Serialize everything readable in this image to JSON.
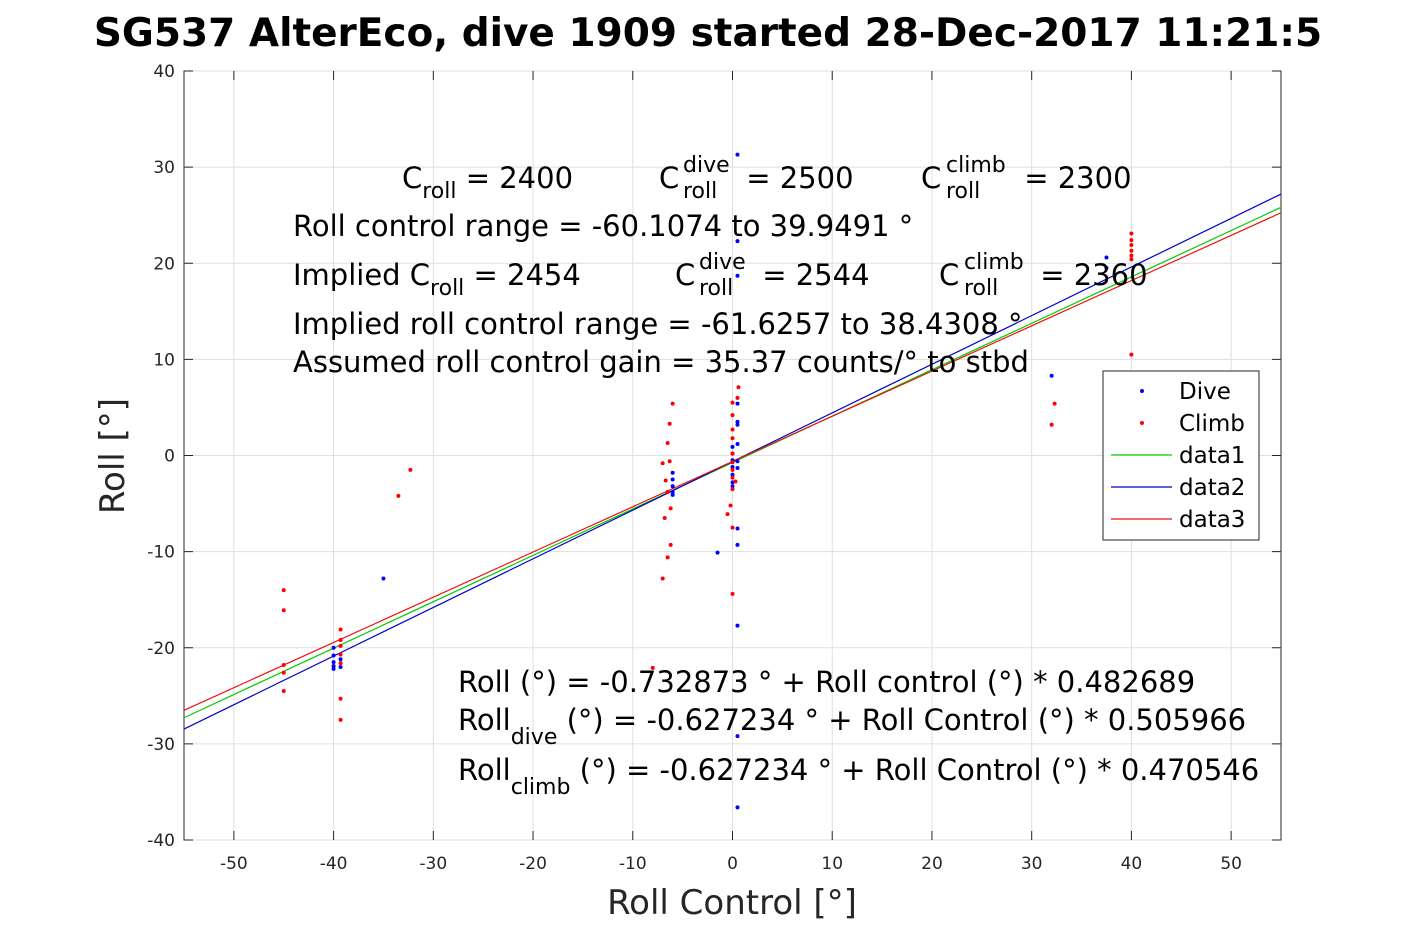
{
  "chart_data": {
    "type": "scatter",
    "title": "SG537 AlterEco, dive 1909 started 28-Dec-2017 11:21:5",
    "xlabel": "Roll Control [°]",
    "ylabel": "Roll [°]",
    "xlim": [
      -55,
      55
    ],
    "ylim": [
      -40,
      40
    ],
    "xticks": [
      -50,
      -40,
      -30,
      -20,
      -10,
      0,
      10,
      20,
      30,
      40,
      50
    ],
    "yticks": [
      -40,
      -30,
      -20,
      -10,
      0,
      10,
      20,
      30,
      40
    ],
    "grid": true,
    "legend_position": "right",
    "series": [
      {
        "name": "Dive",
        "kind": "points",
        "color": "#0000ff",
        "points": [
          [
            -40,
            -20
          ],
          [
            -40,
            -20.8
          ],
          [
            -40,
            -21.5
          ],
          [
            -40,
            -21.9
          ],
          [
            -40,
            -22.2
          ],
          [
            -39.3,
            -21.2
          ],
          [
            -39.3,
            -22
          ],
          [
            -35,
            -12.8
          ],
          [
            -1.5,
            -10.1
          ],
          [
            -6,
            -1.8
          ],
          [
            -6,
            -2.5
          ],
          [
            -6,
            -3.2
          ],
          [
            -6,
            -3.8
          ],
          [
            -6,
            -4.1
          ],
          [
            0,
            0.9
          ],
          [
            0,
            0.2
          ],
          [
            0,
            -0.5
          ],
          [
            0,
            -1.2
          ],
          [
            0,
            -2
          ],
          [
            0,
            -2.8
          ],
          [
            0,
            -3.2
          ],
          [
            0.5,
            31.3
          ],
          [
            0.5,
            22.3
          ],
          [
            0.5,
            18.7
          ],
          [
            0.5,
            5.4
          ],
          [
            0.5,
            3.5
          ],
          [
            0.5,
            3.2
          ],
          [
            0.5,
            1.2
          ],
          [
            0.5,
            -0.6
          ],
          [
            0.5,
            -1.3
          ],
          [
            0.5,
            -7.6
          ],
          [
            0.5,
            -9.3
          ],
          [
            0.5,
            -17.7
          ],
          [
            0.5,
            -29.2
          ],
          [
            0.5,
            -36.6
          ],
          [
            37.5,
            20.6
          ],
          [
            37.5,
            19.5
          ],
          [
            32,
            8.3
          ]
        ]
      },
      {
        "name": "Climb",
        "kind": "points",
        "color": "#ff0000",
        "points": [
          [
            -45,
            -14
          ],
          [
            -45,
            -16.1
          ],
          [
            -45,
            -21.8
          ],
          [
            -45,
            -22.6
          ],
          [
            -45,
            -24.5
          ],
          [
            -39.3,
            -18.1
          ],
          [
            -39.3,
            -19.2
          ],
          [
            -39.3,
            -19.8
          ],
          [
            -39.3,
            -20.7
          ],
          [
            -39.3,
            -21.6
          ],
          [
            -39.3,
            -25.3
          ],
          [
            -39.3,
            -27.5
          ],
          [
            -33.5,
            -4.2
          ],
          [
            -32.3,
            -1.5
          ],
          [
            -8,
            -22.1
          ],
          [
            -7,
            -12.8
          ],
          [
            -6.5,
            -10.6
          ],
          [
            -6.2,
            -9.3
          ],
          [
            -6.8,
            -6.5
          ],
          [
            -6.2,
            -5.5
          ],
          [
            -6.5,
            -3.8
          ],
          [
            -6.7,
            -2.6
          ],
          [
            -6.3,
            -0.6
          ],
          [
            -6.5,
            1.3
          ],
          [
            -6.3,
            3.3
          ],
          [
            -6,
            5.4
          ],
          [
            -7,
            -0.8
          ],
          [
            -0.5,
            -6.1
          ],
          [
            -0.2,
            -5.2
          ],
          [
            0,
            -14.4
          ],
          [
            0,
            -7.5
          ],
          [
            0,
            -3.5
          ],
          [
            0,
            -2.3
          ],
          [
            0,
            -1.5
          ],
          [
            0,
            -0.7
          ],
          [
            0,
            0.2
          ],
          [
            0,
            1.8
          ],
          [
            0,
            2.7
          ],
          [
            0,
            4.2
          ],
          [
            0,
            5.5
          ],
          [
            0.5,
            6
          ],
          [
            0.6,
            7.1
          ],
          [
            0.3,
            -2.7
          ],
          [
            32,
            3.2
          ],
          [
            32.3,
            5.4
          ],
          [
            40,
            23.1
          ],
          [
            40,
            22.4
          ],
          [
            40,
            21.9
          ],
          [
            40,
            21.3
          ],
          [
            40,
            20.8
          ],
          [
            40,
            20.4
          ],
          [
            40,
            10.5
          ]
        ]
      },
      {
        "name": "data1",
        "kind": "line",
        "color": "#00cc00",
        "intercept": -0.732873,
        "slope": 0.482689
      },
      {
        "name": "data2",
        "kind": "line",
        "color": "#0000cc",
        "intercept": -0.627234,
        "slope": 0.505966
      },
      {
        "name": "data3",
        "kind": "line",
        "color": "#ee1111",
        "intercept": -0.627234,
        "slope": 0.470546
      }
    ]
  },
  "annotations": {
    "top": {
      "c": "C",
      "roll": "roll",
      "dive": "dive",
      "climb": "climb",
      "eq_2400": " = 2400",
      "eq_2500": " = 2500",
      "eq_2300": " = 2300",
      "range": "Roll control range = -60.1074 to 39.9491 °",
      "implied_prefix": "Implied C",
      "eq_2454": " = 2454",
      "eq_2544": " = 2544",
      "eq_2360": " = 2360",
      "implied_range": "Implied roll control range = -61.6257 to 38.4308 °",
      "gain": "Assumed roll control gain = 35.37 counts/° to stbd"
    },
    "bottom": {
      "line1": "Roll (°) = -0.732873 ° + Roll control (°) * 0.482689",
      "roll": "Roll",
      "dive": "dive",
      "climb": "climb",
      "line2_rest": " (°) = -0.627234 ° + Roll Control (°) * 0.505966",
      "line3_rest": " (°) = -0.627234 ° + Roll Control (°) * 0.470546"
    }
  }
}
